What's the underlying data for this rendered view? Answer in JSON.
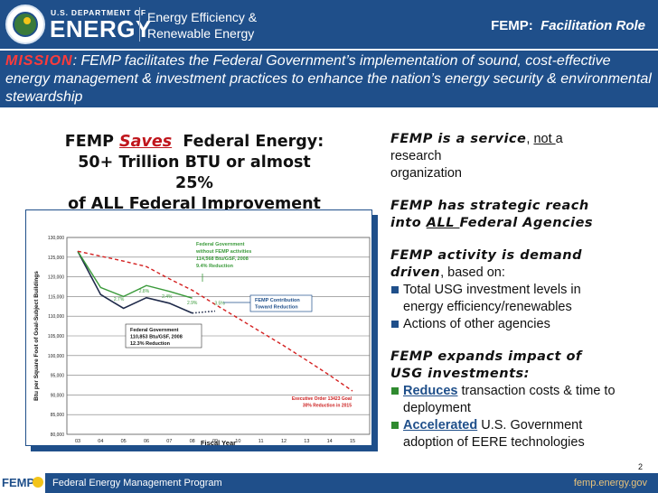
{
  "header": {
    "dept_small": "U.S. DEPARTMENT OF",
    "dept_big": "ENERGY",
    "eere_line1": "Energy Efficiency &",
    "eere_line2": "Renewable Energy",
    "title_prefix": "FEMP:",
    "title_main": "Facilitation Role"
  },
  "mission": {
    "label": "MISSION",
    "text": ": FEMP facilitates the Federal Government’s implementation of sound, cost-effective energy management & investment practices to enhance the nation’s energy security & environmental stewardship"
  },
  "headline": {
    "part1": "FEMP ",
    "saves": "Saves",
    "part2": "  Federal Energy:",
    "line2": "50+ Trillion BTU or almost",
    "line3": "25%",
    "line4": "of ALL Federal Improvement"
  },
  "chart_data": {
    "type": "line",
    "title": "",
    "xlabel": "Fiscal Year",
    "ylabel": "Btu per Square Foot of Goal-Subject Buildings",
    "x_ticks": [
      "03",
      "04",
      "05",
      "06",
      "07",
      "08",
      "09",
      "10",
      "11",
      "12",
      "13",
      "14",
      "15"
    ],
    "y_ticks": [
      "80,000",
      "85,000",
      "90,000",
      "95,000",
      "100,000",
      "105,000",
      "110,000",
      "115,000",
      "120,000",
      "125,000",
      "130,000"
    ],
    "ylim": [
      80000,
      130000
    ],
    "grid": true,
    "series": [
      {
        "style": "dark solid",
        "x": [
          0,
          1,
          2,
          3,
          4,
          5
        ],
        "values": [
          126500,
          115500,
          112000,
          114700,
          113300,
          110800
        ]
      },
      {
        "style": "green solid",
        "x": [
          0,
          1,
          2,
          3,
          4,
          5
        ],
        "values": [
          126500,
          117300,
          115000,
          117800,
          116300,
          114600
        ]
      },
      {
        "style": "red dashed",
        "x": [
          0,
          2,
          3,
          4,
          5,
          6,
          7,
          8,
          9,
          10,
          11,
          12
        ],
        "values": [
          126500,
          124000,
          122600,
          119500,
          116600,
          113000,
          109500,
          106000,
          102500,
          98800,
          95000,
          91000
        ]
      },
      {
        "style": "dark dotted",
        "x": [
          5,
          6
        ],
        "values": [
          110800,
          111300
        ]
      }
    ],
    "pct_labels": [
      {
        "text": "2.7%",
        "x": 1.8,
        "y": 113900
      },
      {
        "text": "2.8%",
        "x": 2.9,
        "y": 116000
      },
      {
        "text": "2.4%",
        "x": 3.9,
        "y": 114600
      },
      {
        "text": "2.9%",
        "x": 5.0,
        "y": 113000
      },
      {
        "text": "3.5%",
        "x": 6.2,
        "y": 112900
      }
    ],
    "annotations": {
      "without_femp": [
        "Federal Government",
        "without FEMP activities",
        "114,568 Btu/GSF, 2008",
        "9.4% Reduction"
      ],
      "with_femp": [
        "Federal Government",
        "110,853 Btu/GSF, 2008",
        "12.3% Reduction"
      ],
      "contribution": [
        "FEMP Contribution",
        "Toward Reduction"
      ],
      "goal": [
        "Executive Order 13423 Goal",
        "30% Reduction in 2015"
      ]
    },
    "colors": {
      "dark": "#1f2a4a",
      "green": "#3a9a3a",
      "red": "#d42020",
      "label_green": "#3a9a3a",
      "label_red": "#cc2020",
      "label_blue": "#1f4f8a"
    }
  },
  "right": {
    "service_head": "FEMP is a service",
    "service_comma": ", ",
    "service_not": "not ",
    "service_rest1": "a",
    "service_rest2": "research",
    "service_rest3": "organization",
    "reach_line1": "FEMP has strategic reach",
    "reach_into": "into ",
    "reach_all": "ALL ",
    "reach_agencies": "Federal Agencies",
    "demand_line1": "FEMP activity is demand",
    "demand_driven": "driven",
    "demand_based": ", based on:",
    "bullet1_a": "Total USG investment levels in",
    "bullet1_b": "energy efficiency/renewables",
    "bullet2": "Actions of other agencies",
    "expands_line1": "FEMP expands impact of",
    "expands_line2": "USG investments:",
    "bullet3_key": "Reduces",
    "bullet3_a": " transaction costs & time to",
    "bullet3_b": "deployment",
    "bullet4_key": "Accelerated",
    "bullet4_a": " U.S. Government",
    "bullet4_b": "adoption of EERE technologies",
    "bullet_color": "#1f4f8a",
    "bullet_green": "#2f8a2f"
  },
  "footer": {
    "logo": "FEMP",
    "program": "Federal Energy Management Program",
    "url": "femp.energy.gov",
    "page": "2"
  }
}
